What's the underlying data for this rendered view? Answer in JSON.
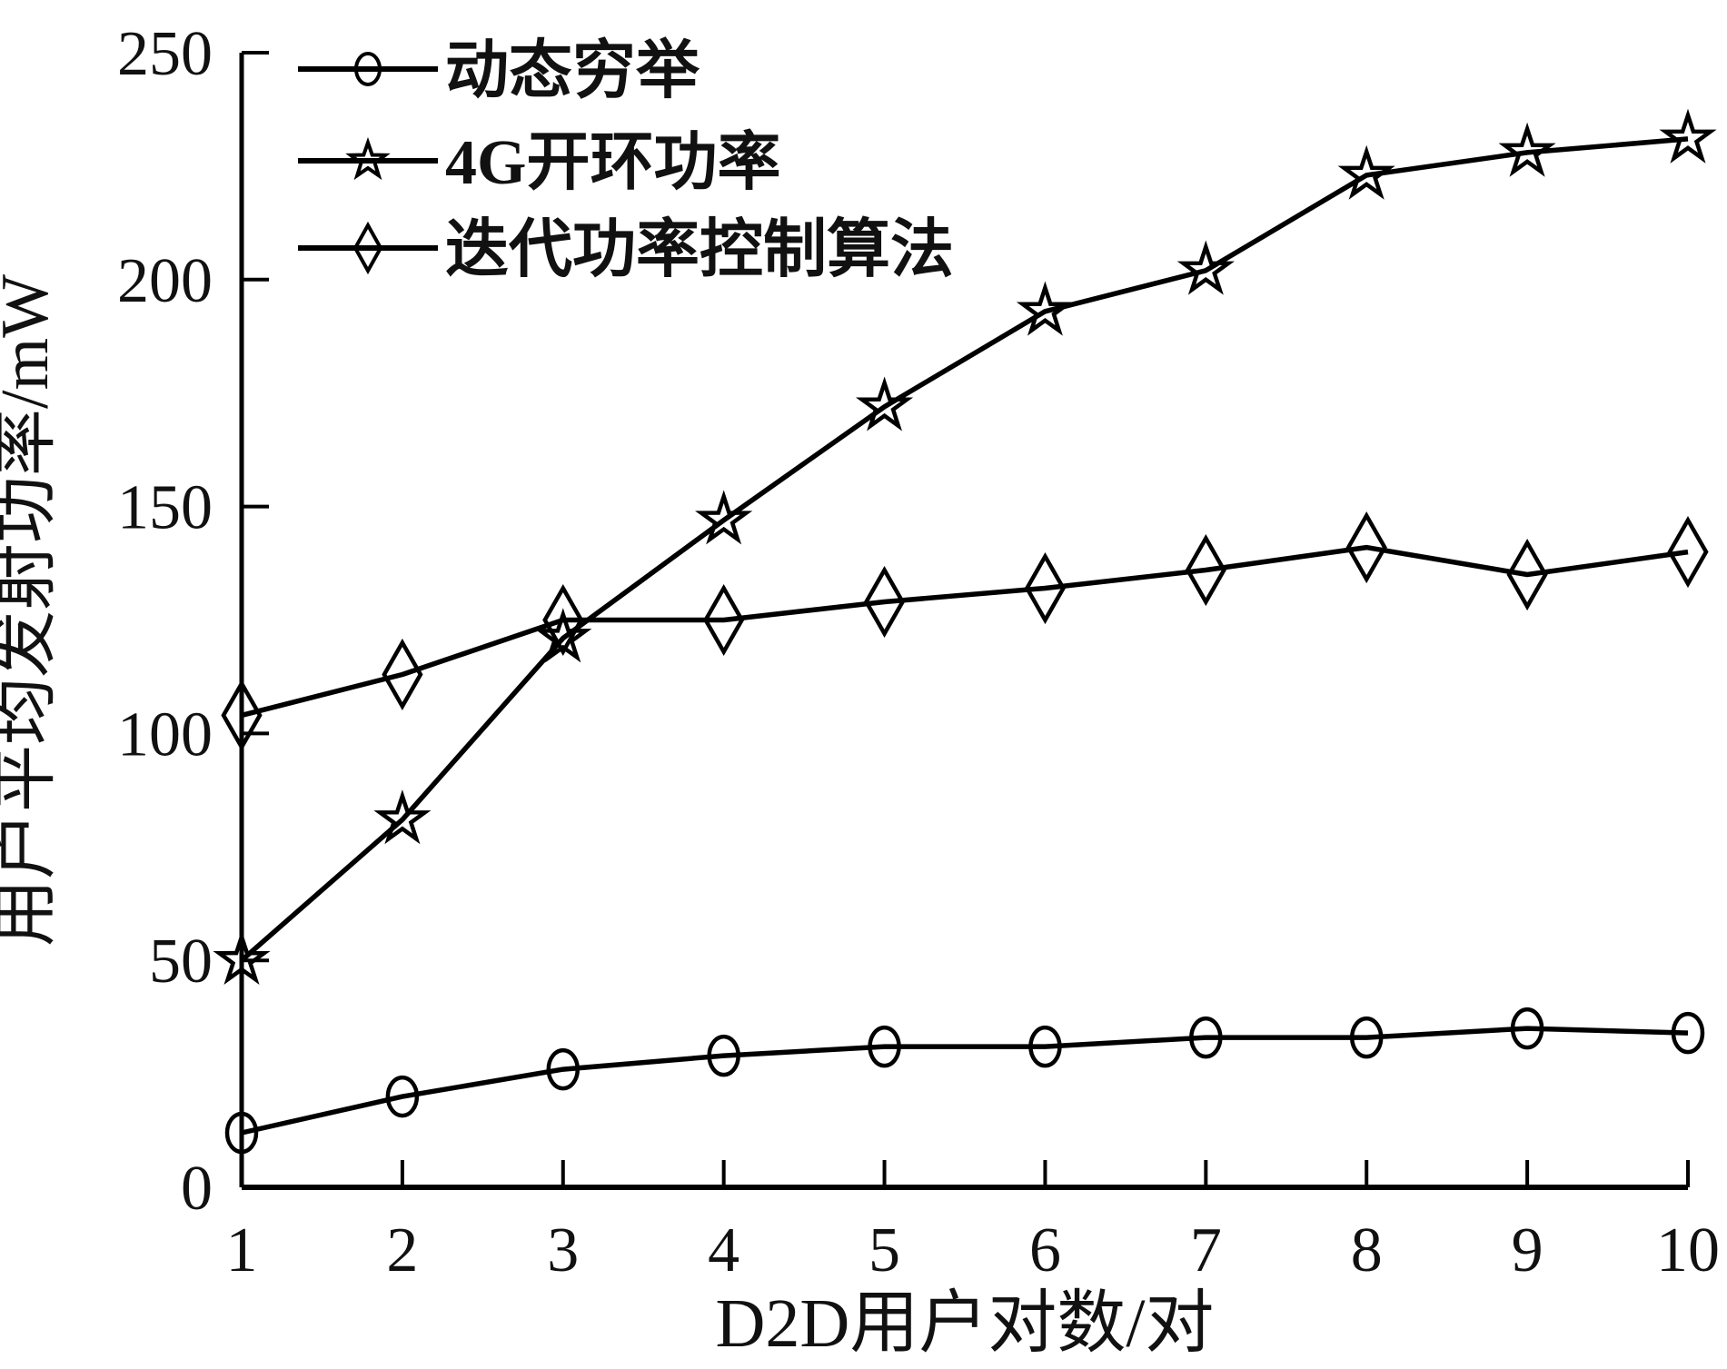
{
  "figure": {
    "background": "#ffffff",
    "ink": "#000000",
    "tick_label_color": "#1a1a1a"
  },
  "chart_data": {
    "type": "line",
    "title": "",
    "xlabel": "D2D用户对数/对",
    "ylabel": "用户平均发射功率/mW",
    "x": [
      1,
      2,
      3,
      4,
      5,
      6,
      7,
      8,
      9,
      10
    ],
    "xticks": [
      1,
      2,
      3,
      4,
      5,
      6,
      7,
      8,
      9,
      10
    ],
    "yticks": [
      0,
      50,
      100,
      150,
      200,
      250
    ],
    "xlim": [
      1,
      10
    ],
    "ylim": [
      0,
      250
    ],
    "grid": false,
    "legend_position": "top-left",
    "series": [
      {
        "name": "动态穷举",
        "marker": "circle",
        "color": "#000000",
        "values": [
          12,
          20,
          26,
          29,
          31,
          31,
          33,
          33,
          35,
          34
        ]
      },
      {
        "name": "4G开环功率",
        "marker": "star",
        "color": "#000000",
        "values": [
          50,
          81,
          121,
          147,
          172,
          193,
          202,
          223,
          228,
          231
        ]
      },
      {
        "name": "迭代功率控制算法",
        "marker": "diamond",
        "color": "#000000",
        "values": [
          104,
          113,
          125,
          125,
          129,
          132,
          136,
          141,
          135,
          140
        ]
      }
    ]
  }
}
